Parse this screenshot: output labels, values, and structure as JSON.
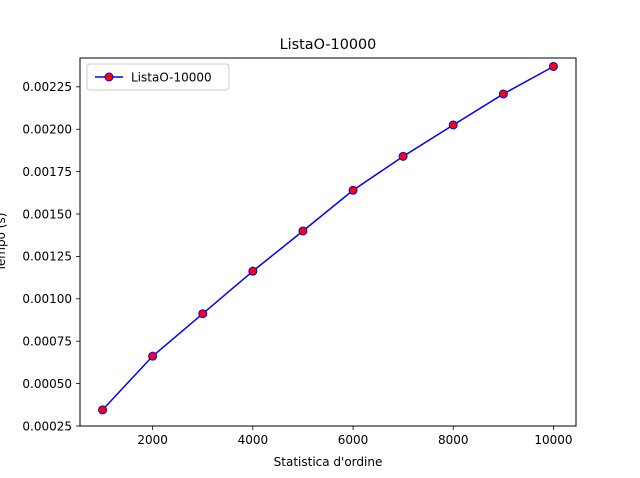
{
  "chart_data": {
    "type": "line",
    "title": "ListaO-10000",
    "xlabel": "Statistica d'ordine",
    "ylabel": "Tempo (s)",
    "xlim": [
      550,
      10450
    ],
    "ylim": [
      0.00025,
      0.00242
    ],
    "x_ticks": [
      2000,
      4000,
      6000,
      8000,
      10000
    ],
    "x_tick_labels": [
      "2000",
      "4000",
      "6000",
      "8000",
      "10000"
    ],
    "y_ticks": [
      0.00025,
      0.0005,
      0.00075,
      0.001,
      0.00125,
      0.0015,
      0.00175,
      0.002,
      0.00225
    ],
    "y_tick_labels": [
      "0.00025",
      "0.00050",
      "0.00075",
      "0.00100",
      "0.00125",
      "0.00150",
      "0.00175",
      "0.00200",
      "0.00225"
    ],
    "grid": false,
    "legend_position": "upper-left",
    "series": [
      {
        "name": "ListaO-10000",
        "line_color": "#0000ff",
        "marker_face": "#ff0000",
        "marker_edge": "#0000ff",
        "x": [
          1000,
          2000,
          3000,
          4000,
          5000,
          6000,
          7000,
          8000,
          9000,
          10000
        ],
        "y": [
          0.000345,
          0.000662,
          0.000912,
          0.001163,
          0.0014,
          0.00164,
          0.00184,
          0.002025,
          0.002208,
          0.00237
        ]
      }
    ]
  }
}
